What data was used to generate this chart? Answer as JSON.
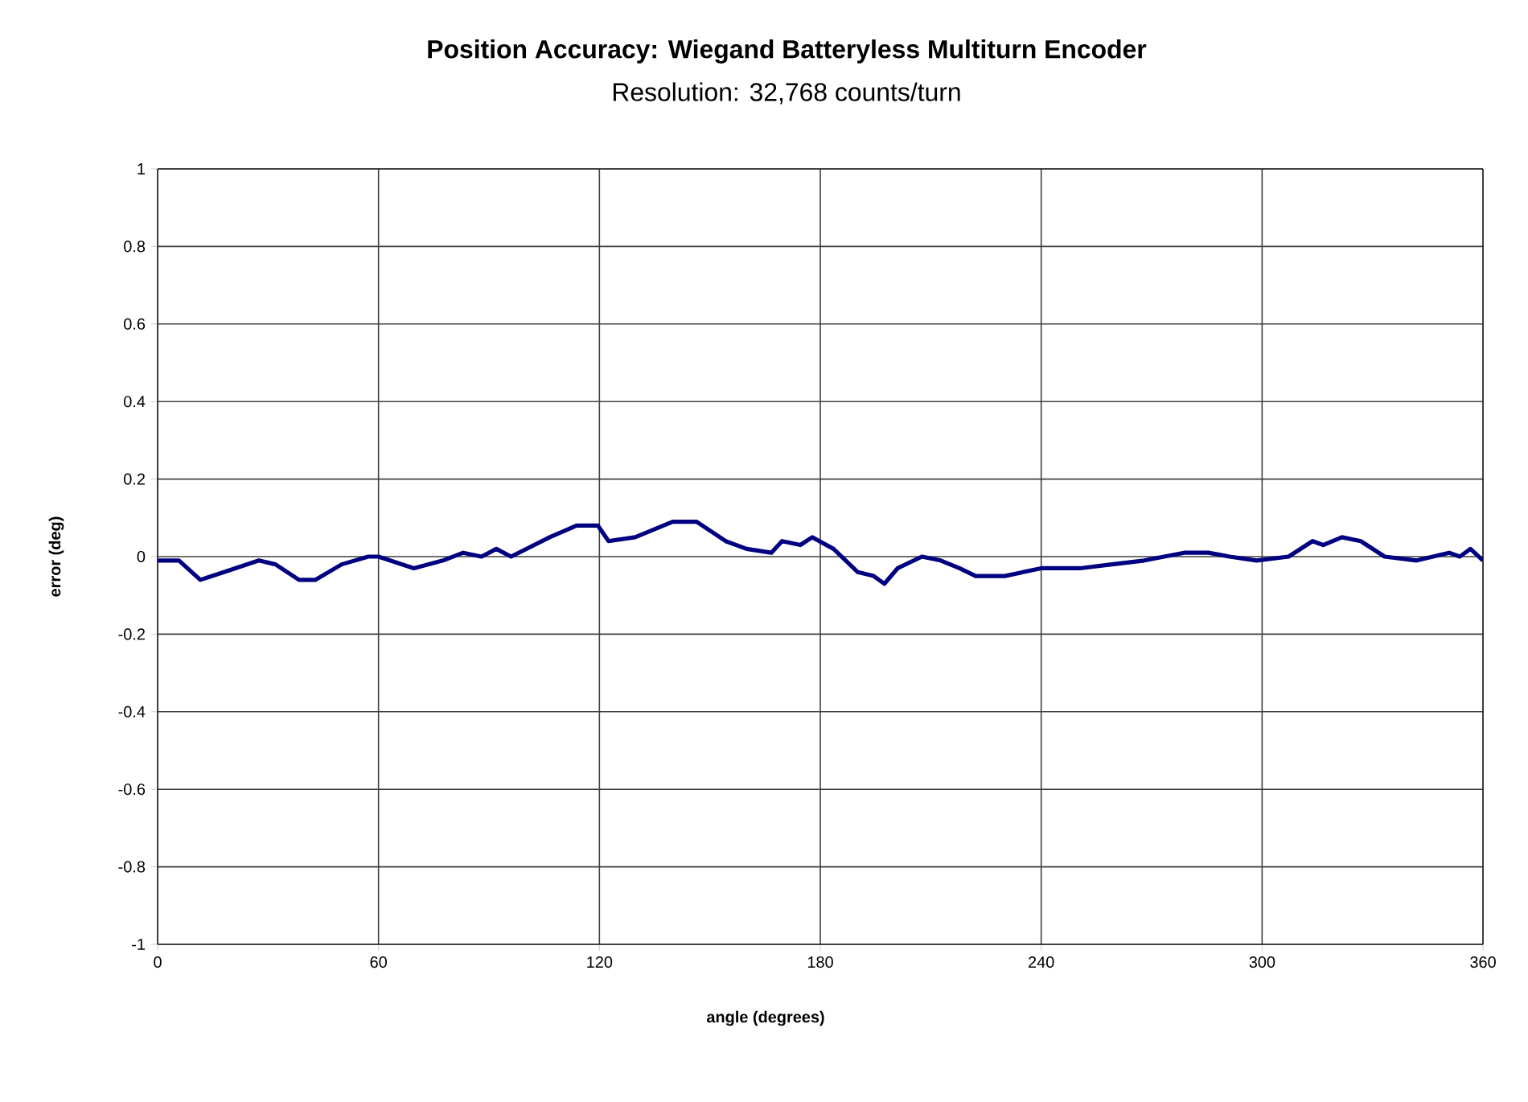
{
  "chart_data": {
    "type": "line",
    "title": "Position Accuracy: Wiegand Batteryless Multiturn Encoder",
    "subtitle": "Resolution: 32,768 counts/turn",
    "xlabel": "angle (degrees)",
    "ylabel": "error (deg)",
    "xlim": [
      0,
      360
    ],
    "xticks": [
      0,
      60,
      120,
      180,
      240,
      300,
      360
    ],
    "ylim": [
      -1,
      1
    ],
    "yticks": [
      -1,
      -0.8,
      -0.6,
      -0.4,
      -0.2,
      0,
      0.2,
      0.4,
      0.6,
      0.8,
      1
    ],
    "grid": true,
    "marker": "none",
    "line_style": "solid",
    "series": [
      {
        "color": "#000080",
        "x": [
          0,
          5.8,
          11.6,
          18,
          27.5,
          32,
          38.4,
          42.8,
          50,
          57.2,
          60,
          69.6,
          77.5,
          83,
          88,
          92,
          96,
          106.5,
          113.8,
          119.6,
          122.5,
          129.7,
          139.9,
          146.4,
          154.3,
          160,
          166.7,
          169.6,
          174.6,
          177.8,
          183.6,
          190.2,
          194.5,
          197.4,
          201,
          207.6,
          212.7,
          217.8,
          222.2,
          230.1,
          240,
          250.5,
          259.2,
          268,
          278.8,
          285.4,
          291.2,
          298.5,
          307.2,
          313.7,
          316.6,
          321.7,
          326.8,
          333.3,
          342,
          350.8,
          353.7,
          356.6,
          360
        ],
        "values": [
          -0.01,
          -0.01,
          -0.06,
          -0.04,
          -0.01,
          -0.02,
          -0.06,
          -0.06,
          -0.02,
          0,
          0,
          -0.03,
          -0.01,
          0.01,
          0,
          0.02,
          0,
          0.05,
          0.08,
          0.08,
          0.04,
          0.05,
          0.09,
          0.09,
          0.04,
          0.02,
          0.01,
          0.04,
          0.03,
          0.05,
          0.02,
          -0.04,
          -0.05,
          -0.07,
          -0.03,
          0,
          -0.01,
          -0.03,
          -0.05,
          -0.05,
          -0.03,
          -0.03,
          -0.02,
          -0.01,
          0.01,
          0.01,
          0,
          -0.01,
          0,
          0.04,
          0.03,
          0.05,
          0.04,
          0,
          -0.01,
          0.01,
          0,
          0.02,
          -0.01
        ]
      }
    ]
  }
}
